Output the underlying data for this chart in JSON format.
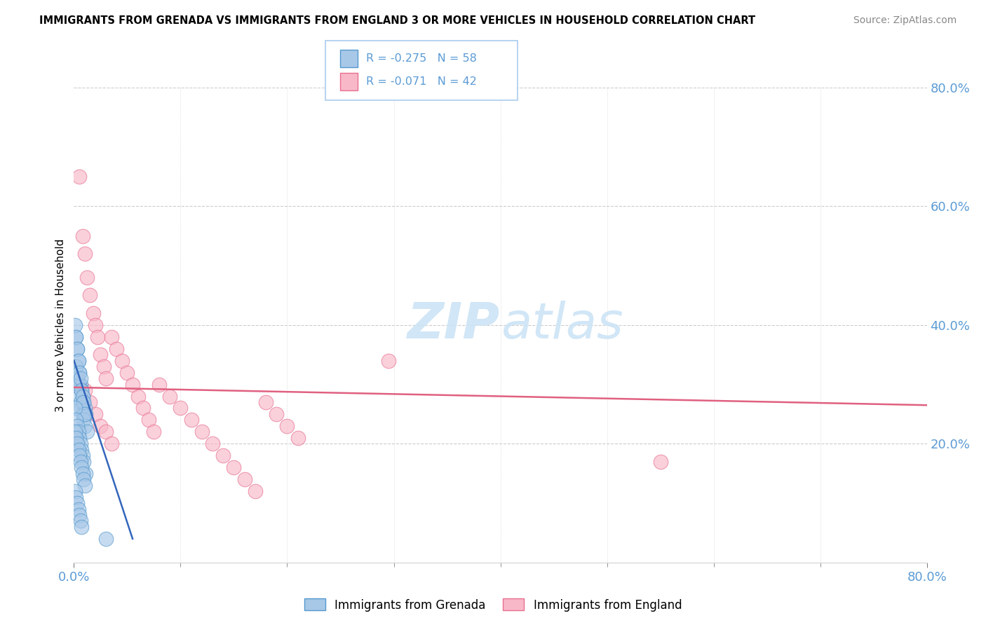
{
  "title": "IMMIGRANTS FROM GRENADA VS IMMIGRANTS FROM ENGLAND 3 OR MORE VEHICLES IN HOUSEHOLD CORRELATION CHART",
  "source": "Source: ZipAtlas.com",
  "ylabel": "3 or more Vehicles in Household",
  "xlim": [
    0.0,
    0.8
  ],
  "ylim": [
    0.0,
    0.8
  ],
  "legend_blue_r": "-0.275",
  "legend_blue_n": "58",
  "legend_pink_r": "-0.071",
  "legend_pink_n": "42",
  "blue_fill": "#a8c8e8",
  "blue_edge": "#5599cc",
  "pink_fill": "#f8b8c8",
  "pink_edge": "#e87090",
  "blue_line": "#3366bb",
  "pink_line": "#e06080",
  "text_blue": "#5b9bd5",
  "watermark_color": "#cce4f5",
  "grid_color": "#cccccc",
  "blue_x": [
    0.002,
    0.003,
    0.004,
    0.005,
    0.006,
    0.007,
    0.008,
    0.009,
    0.01,
    0.011,
    0.002,
    0.003,
    0.004,
    0.005,
    0.006,
    0.007,
    0.008,
    0.009,
    0.01,
    0.012,
    0.001,
    0.002,
    0.003,
    0.004,
    0.005,
    0.006,
    0.007,
    0.008,
    0.009,
    0.01,
    0.001,
    0.002,
    0.003,
    0.004,
    0.005,
    0.006,
    0.007,
    0.008,
    0.009,
    0.011,
    0.001,
    0.002,
    0.003,
    0.004,
    0.005,
    0.006,
    0.007,
    0.008,
    0.009,
    0.01,
    0.001,
    0.002,
    0.003,
    0.004,
    0.005,
    0.006,
    0.007,
    0.03
  ],
  "blue_y": [
    0.38,
    0.36,
    0.34,
    0.32,
    0.3,
    0.29,
    0.28,
    0.27,
    0.26,
    0.25,
    0.33,
    0.31,
    0.3,
    0.28,
    0.27,
    0.26,
    0.25,
    0.24,
    0.23,
    0.22,
    0.4,
    0.38,
    0.36,
    0.34,
    0.32,
    0.31,
    0.29,
    0.28,
    0.27,
    0.25,
    0.26,
    0.24,
    0.23,
    0.22,
    0.21,
    0.2,
    0.19,
    0.18,
    0.17,
    0.15,
    0.22,
    0.21,
    0.2,
    0.19,
    0.18,
    0.17,
    0.16,
    0.15,
    0.14,
    0.13,
    0.12,
    0.11,
    0.1,
    0.09,
    0.08,
    0.07,
    0.06,
    0.04
  ],
  "pink_x": [
    0.005,
    0.008,
    0.01,
    0.012,
    0.015,
    0.018,
    0.02,
    0.022,
    0.025,
    0.028,
    0.03,
    0.035,
    0.04,
    0.045,
    0.05,
    0.055,
    0.06,
    0.065,
    0.07,
    0.075,
    0.08,
    0.09,
    0.1,
    0.11,
    0.12,
    0.13,
    0.14,
    0.15,
    0.16,
    0.17,
    0.18,
    0.19,
    0.2,
    0.21,
    0.01,
    0.015,
    0.02,
    0.025,
    0.03,
    0.035,
    0.295,
    0.55
  ],
  "pink_y": [
    0.65,
    0.55,
    0.52,
    0.48,
    0.45,
    0.42,
    0.4,
    0.38,
    0.35,
    0.33,
    0.31,
    0.38,
    0.36,
    0.34,
    0.32,
    0.3,
    0.28,
    0.26,
    0.24,
    0.22,
    0.3,
    0.28,
    0.26,
    0.24,
    0.22,
    0.2,
    0.18,
    0.16,
    0.14,
    0.12,
    0.27,
    0.25,
    0.23,
    0.21,
    0.29,
    0.27,
    0.25,
    0.23,
    0.22,
    0.2,
    0.34,
    0.17
  ],
  "pink_line_x": [
    0.0,
    0.8
  ],
  "pink_line_y": [
    0.295,
    0.265
  ],
  "blue_line_x": [
    0.0,
    0.055
  ],
  "blue_line_y": [
    0.34,
    0.04
  ]
}
